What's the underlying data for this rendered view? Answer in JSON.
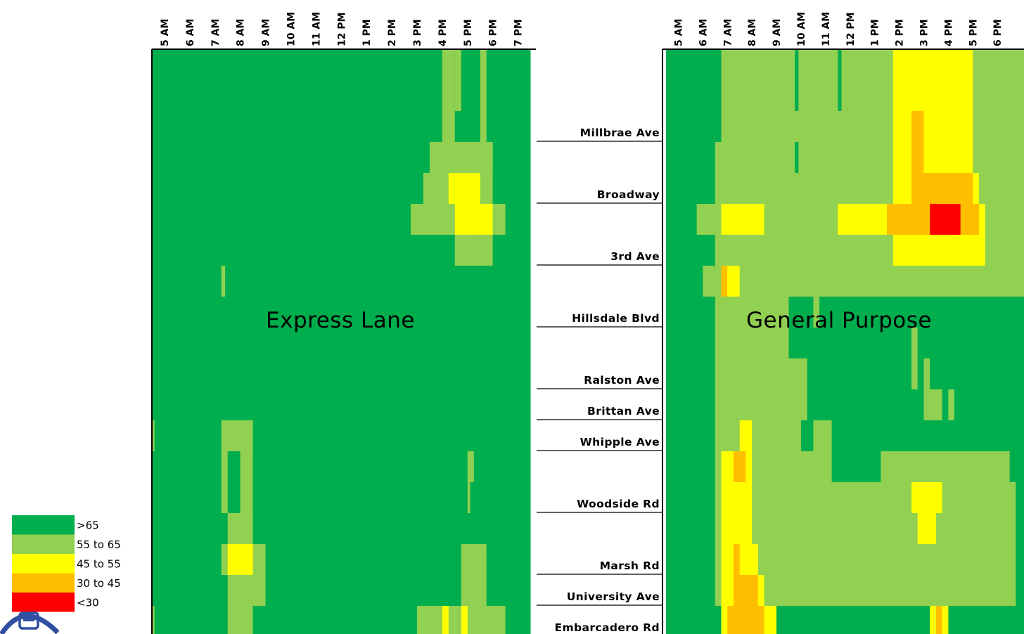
{
  "colors": {
    "gt65": "#00ae4d",
    "55to65": "#92d051",
    "45to55": "#ffff00",
    "30to45": "#ffbf00",
    "lt30": "#ff0000",
    "logo_blue": "#2f4fa0"
  },
  "chart_data": {
    "type": "heatmap",
    "time_labels": [
      "5 AM",
      "6 AM",
      "7 AM",
      "8 AM",
      "9 AM",
      "10 AM",
      "11 AM",
      "12 PM",
      "1 PM",
      "2 PM",
      "3 PM",
      "4 PM",
      "5 PM",
      "6 PM",
      "7 PM"
    ],
    "locations": [
      "Millbrae Ave",
      "Broadway",
      "3rd Ave",
      "Hillsdale Blvd",
      "Ralston Ave",
      "Brittan Ave",
      "Whipple Ave",
      "Woodside Rd",
      "Marsh Rd",
      "University Ave",
      "Embarcadero Rd"
    ],
    "legend": [
      {
        "key": "gt65",
        "label": ">65"
      },
      {
        "key": "55to65",
        "label": "55 to 65"
      },
      {
        "key": "45to55",
        "label": "45 to 55"
      },
      {
        "key": "30to45",
        "label": "30 to 45"
      },
      {
        "key": "lt30",
        "label": "<30"
      }
    ],
    "panels": [
      {
        "name": "Express Lane",
        "rects": [
          {
            "t0": 11.5,
            "t1": 12.0,
            "r0": 0,
            "r1": 3,
            "c": "55to65"
          },
          {
            "t0": 12.0,
            "t1": 12.25,
            "r0": 0,
            "r1": 2,
            "c": "55to65"
          },
          {
            "t0": 13.0,
            "t1": 13.25,
            "r0": 0,
            "r1": 3,
            "c": "55to65"
          },
          {
            "t0": 11.0,
            "t1": 13.5,
            "r0": 3,
            "r1": 4,
            "c": "55to65"
          },
          {
            "t0": 10.75,
            "t1": 13.5,
            "r0": 4,
            "r1": 5,
            "c": "55to65"
          },
          {
            "t0": 10.25,
            "t1": 14.0,
            "r0": 5,
            "r1": 6,
            "c": "55to65"
          },
          {
            "t0": 12.0,
            "t1": 13.0,
            "r0": 4,
            "r1": 5,
            "c": "45to55"
          },
          {
            "t0": 12.0,
            "t1": 13.0,
            "r0": 5,
            "r1": 6,
            "c": "45to55"
          },
          {
            "t0": 11.75,
            "t1": 12.0,
            "r0": 4,
            "r1": 5,
            "c": "45to55"
          },
          {
            "t0": 13.0,
            "t1": 13.5,
            "r0": 5,
            "r1": 6,
            "c": "45to55"
          },
          {
            "t0": 12.0,
            "t1": 13.5,
            "r0": 6,
            "r1": 7,
            "c": "55to65"
          },
          {
            "t0": 2.75,
            "t1": 2.9,
            "r0": 7,
            "r1": 8,
            "c": "55to65"
          },
          {
            "t0": 0.0,
            "t1": 0.1,
            "r0": 12,
            "r1": 13,
            "c": "55to65"
          },
          {
            "t0": 2.75,
            "t1": 4.0,
            "r0": 12,
            "r1": 13,
            "c": "55to65"
          },
          {
            "t0": 2.75,
            "t1": 3.0,
            "r0": 13,
            "r1": 15,
            "c": "55to65"
          },
          {
            "t0": 3.5,
            "t1": 4.0,
            "r0": 13,
            "r1": 15,
            "c": "55to65"
          },
          {
            "t0": 12.5,
            "t1": 12.75,
            "r0": 13,
            "r1": 14,
            "c": "55to65"
          },
          {
            "t0": 12.5,
            "t1": 12.6,
            "r0": 14,
            "r1": 15,
            "c": "55to65"
          },
          {
            "t0": 3.0,
            "t1": 4.0,
            "r0": 15,
            "r1": 16,
            "c": "55to65"
          },
          {
            "t0": 2.75,
            "t1": 4.5,
            "r0": 16,
            "r1": 17,
            "c": "55to65"
          },
          {
            "t0": 3.0,
            "t1": 4.0,
            "r0": 16,
            "r1": 17,
            "c": "45to55"
          },
          {
            "t0": 12.25,
            "t1": 13.25,
            "r0": 16,
            "r1": 17,
            "c": "55to65"
          },
          {
            "t0": 3.0,
            "t1": 4.5,
            "r0": 17,
            "r1": 18,
            "c": "55to65"
          },
          {
            "t0": 12.25,
            "t1": 13.25,
            "r0": 17,
            "r1": 18,
            "c": "55to65"
          },
          {
            "t0": 0.0,
            "t1": 0.1,
            "r0": 18,
            "r1": 19,
            "c": "55to65"
          },
          {
            "t0": 3.0,
            "t1": 4.0,
            "r0": 18,
            "r1": 19,
            "c": "55to65"
          },
          {
            "t0": 10.5,
            "t1": 14.0,
            "r0": 18,
            "r1": 19,
            "c": "55to65"
          },
          {
            "t0": 11.5,
            "t1": 11.75,
            "r0": 18,
            "r1": 19,
            "c": "45to55"
          },
          {
            "t0": 12.25,
            "t1": 12.5,
            "r0": 18,
            "r1": 19,
            "c": "45to55"
          }
        ]
      },
      {
        "name": "General Purpose",
        "rects": [
          {
            "t0": 2.0,
            "t1": 15.0,
            "r0": 0,
            "r1": 18,
            "c": "55to65"
          },
          {
            "t0": 1.25,
            "t1": 2.0,
            "r0": 5,
            "r1": 6,
            "c": "55to65"
          },
          {
            "t0": 1.5,
            "t1": 2.0,
            "r0": 7,
            "r1": 8,
            "c": "55to65"
          },
          {
            "t0": 2.0,
            "t1": 2.25,
            "r0": 0,
            "r1": 3,
            "c": "gt65"
          },
          {
            "t0": 5.25,
            "t1": 5.4,
            "r0": 0,
            "r1": 2,
            "c": "gt65"
          },
          {
            "t0": 5.25,
            "t1": 5.4,
            "r0": 3,
            "r1": 4,
            "c": "gt65"
          },
          {
            "t0": 7.0,
            "t1": 7.15,
            "r0": 0,
            "r1": 2,
            "c": "gt65"
          },
          {
            "t0": 5.0,
            "t1": 6.0,
            "r0": 8,
            "r1": 9,
            "c": "gt65"
          },
          {
            "t0": 6.25,
            "t1": 15.0,
            "r0": 8,
            "r1": 9,
            "c": "gt65"
          },
          {
            "t0": 5.0,
            "t1": 15.0,
            "r0": 9,
            "r1": 10,
            "c": "gt65"
          },
          {
            "t0": 5.75,
            "t1": 15.0,
            "r0": 10,
            "r1": 12,
            "c": "gt65"
          },
          {
            "t0": 5.5,
            "t1": 6.0,
            "r0": 12,
            "r1": 13,
            "c": "gt65"
          },
          {
            "t0": 6.75,
            "t1": 15.0,
            "r0": 12,
            "r1": 13,
            "c": "gt65"
          },
          {
            "t0": 6.75,
            "t1": 8.75,
            "r0": 13,
            "r1": 14,
            "c": "gt65"
          },
          {
            "t0": 14.0,
            "t1": 15.0,
            "r0": 13,
            "r1": 14,
            "c": "gt65"
          },
          {
            "t0": 10.0,
            "t1": 10.25,
            "r0": 9,
            "r1": 11,
            "c": "55to65"
          },
          {
            "t0": 10.5,
            "t1": 10.75,
            "r0": 10,
            "r1": 11,
            "c": "55to65"
          },
          {
            "t0": 10.5,
            "t1": 11.0,
            "r0": 11,
            "r1": 12,
            "c": "55to65"
          },
          {
            "t0": 11.0,
            "t1": 11.25,
            "r0": 11,
            "r1": 12,
            "c": "55to65"
          },
          {
            "t0": 11.5,
            "t1": 11.75,
            "r0": 11,
            "r1": 12,
            "c": "55to65"
          },
          {
            "t0": 14.25,
            "t1": 15.0,
            "r0": 14,
            "r1": 19,
            "c": "gt65"
          },
          {
            "t0": 9.25,
            "t1": 12.5,
            "r0": 0,
            "r1": 4,
            "c": "45to55"
          },
          {
            "t0": 10.0,
            "t1": 10.5,
            "r0": 2,
            "r1": 4,
            "c": "30to45"
          },
          {
            "t0": 9.25,
            "t1": 12.75,
            "r0": 4,
            "r1": 5,
            "c": "45to55"
          },
          {
            "t0": 10.0,
            "t1": 12.5,
            "r0": 4,
            "r1": 5,
            "c": "30to45"
          },
          {
            "t0": 2.25,
            "t1": 4.0,
            "r0": 5,
            "r1": 6,
            "c": "45to55"
          },
          {
            "t0": 7.0,
            "t1": 9.0,
            "r0": 5,
            "r1": 6,
            "c": "45to55"
          },
          {
            "t0": 9.0,
            "t1": 10.75,
            "r0": 5,
            "r1": 6,
            "c": "30to45"
          },
          {
            "t0": 10.75,
            "t1": 12.0,
            "r0": 5,
            "r1": 6,
            "c": "lt30"
          },
          {
            "t0": 12.0,
            "t1": 12.75,
            "r0": 5,
            "r1": 6,
            "c": "30to45"
          },
          {
            "t0": 12.75,
            "t1": 13.0,
            "r0": 5,
            "r1": 6,
            "c": "45to55"
          },
          {
            "t0": 9.25,
            "t1": 13.0,
            "r0": 6,
            "r1": 7,
            "c": "45to55"
          },
          {
            "t0": 2.25,
            "t1": 3.0,
            "r0": 7,
            "r1": 8,
            "c": "45to55"
          },
          {
            "t0": 2.25,
            "t1": 2.5,
            "r0": 7,
            "r1": 8,
            "c": "30to45"
          },
          {
            "t0": 3.0,
            "t1": 3.5,
            "r0": 12,
            "r1": 13,
            "c": "45to55"
          },
          {
            "t0": 2.25,
            "t1": 3.5,
            "r0": 13,
            "r1": 14,
            "c": "45to55"
          },
          {
            "t0": 2.75,
            "t1": 3.25,
            "r0": 13,
            "r1": 14,
            "c": "30to45"
          },
          {
            "t0": 2.25,
            "t1": 3.5,
            "r0": 14,
            "r1": 15,
            "c": "45to55"
          },
          {
            "t0": 10.0,
            "t1": 11.25,
            "r0": 14,
            "r1": 15,
            "c": "45to55"
          },
          {
            "t0": 2.25,
            "t1": 3.5,
            "r0": 15,
            "r1": 16,
            "c": "45to55"
          },
          {
            "t0": 10.25,
            "t1": 11.0,
            "r0": 15,
            "r1": 16,
            "c": "45to55"
          },
          {
            "t0": 2.25,
            "t1": 3.75,
            "r0": 16,
            "r1": 17,
            "c": "45to55"
          },
          {
            "t0": 2.75,
            "t1": 3.0,
            "r0": 16,
            "r1": 17,
            "c": "30to45"
          },
          {
            "t0": 2.25,
            "t1": 4.0,
            "r0": 17,
            "r1": 18,
            "c": "45to55"
          },
          {
            "t0": 2.75,
            "t1": 3.75,
            "r0": 17,
            "r1": 18,
            "c": "30to45"
          },
          {
            "t0": 2.25,
            "t1": 4.5,
            "r0": 18,
            "r1": 19,
            "c": "45to55"
          },
          {
            "t0": 2.5,
            "t1": 4.0,
            "r0": 18,
            "r1": 19,
            "c": "30to45"
          },
          {
            "t0": 10.75,
            "t1": 11.5,
            "r0": 18,
            "r1": 19,
            "c": "45to55"
          },
          {
            "t0": 11.0,
            "t1": 11.25,
            "r0": 18,
            "r1": 19,
            "c": "30to45"
          },
          {
            "t0": 2.25,
            "t1": 2.5,
            "r0": 19,
            "r1": 20,
            "c": "45to55"
          },
          {
            "t0": 2.5,
            "t1": 3.25,
            "r0": 19,
            "r1": 20,
            "c": "30to45"
          },
          {
            "t0": 3.25,
            "t1": 3.75,
            "r0": 19,
            "r1": 20,
            "c": "45to55"
          },
          {
            "t0": 10.75,
            "t1": 11.5,
            "r0": 19,
            "r1": 20,
            "c": "45to55"
          },
          {
            "t0": 3.5,
            "t1": 4.5,
            "r0": 20,
            "r1": 21,
            "c": "45to55"
          },
          {
            "t0": 10.25,
            "t1": 12.5,
            "r0": 20,
            "r1": 21,
            "c": "45to55"
          }
        ]
      }
    ]
  }
}
